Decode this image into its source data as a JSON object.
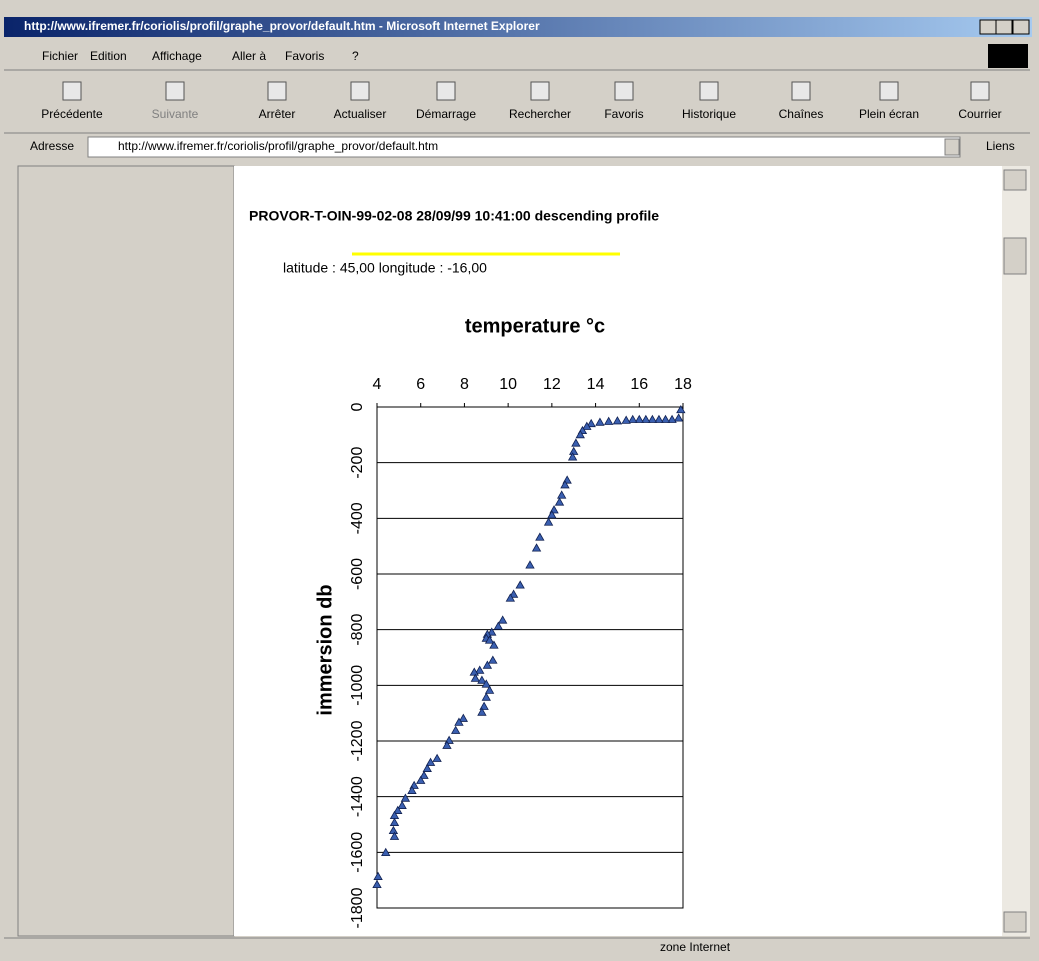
{
  "window": {
    "title": "http://www.ifremer.fr/coriolis/profil/graphe_provor/default.htm - Microsoft Internet Explorer"
  },
  "menu": [
    "Fichier",
    "Edition",
    "Affichage",
    "Aller à",
    "Favoris",
    "?"
  ],
  "toolbar": [
    "Précédente",
    "Suivante",
    "Arrêter",
    "Actualiser",
    "Démarrage",
    "Rechercher",
    "Favoris",
    "Historique",
    "Chaînes",
    "Plein écran",
    "Courrier"
  ],
  "address": {
    "label": "Adresse",
    "url": "http://www.ifremer.fr/coriolis/profil/graphe_provor/default.htm",
    "links": "Liens"
  },
  "page": {
    "heading": "PROVOR-T-OIN-99-02-08 28/09/99 10:41:00 descending profile",
    "position": "latitude : 45,00 longitude : -16,00"
  },
  "status": {
    "zone": "zone Internet"
  },
  "chart_data": {
    "type": "scatter",
    "title": "temperature °c",
    "y_label": "immersion db",
    "xlim": [
      4,
      18
    ],
    "xticks": [
      4,
      6,
      8,
      10,
      12,
      14,
      16,
      18
    ],
    "ylim": [
      -1800,
      0
    ],
    "yticks": [
      0,
      -200,
      -400,
      -600,
      -800,
      -1000,
      -1200,
      -1400,
      -1600,
      -1800
    ],
    "grid": true,
    "color": "#3a5fb0",
    "x": [
      17.9,
      17.8,
      17.5,
      17.2,
      16.9,
      16.6,
      16.3,
      16.0,
      15.7,
      15.4,
      15.0,
      14.6,
      14.2,
      13.8,
      13.6,
      13.4,
      13.3,
      13.1,
      13.0,
      12.95,
      12.7,
      12.6,
      12.45,
      12.35,
      12.1,
      12.0,
      11.85,
      11.45,
      11.3,
      11.0,
      10.55,
      10.25,
      10.1,
      9.75,
      9.55,
      9.25,
      9.05,
      9.0,
      9.15,
      9.35,
      9.3,
      9.05,
      8.7,
      8.45,
      8.5,
      8.8,
      9.0,
      9.15,
      9.0,
      8.9,
      8.8,
      7.95,
      7.75,
      7.6,
      7.3,
      7.2,
      6.75,
      6.45,
      6.3,
      6.15,
      6.0,
      5.7,
      5.6,
      5.3,
      5.15,
      4.95,
      4.8,
      4.8,
      4.75,
      4.8,
      4.4,
      4.05,
      4.0
    ],
    "values": [
      -10,
      -40,
      -45,
      -45,
      -45,
      -45,
      -45,
      -45,
      -45,
      -48,
      -50,
      -52,
      -55,
      -60,
      -70,
      -85,
      -100,
      -130,
      -160,
      -180,
      -263,
      -280,
      -317,
      -342,
      -370,
      -388,
      -414,
      -468,
      -507,
      -568,
      -640,
      -673,
      -687,
      -766,
      -788,
      -809,
      -817,
      -831,
      -838,
      -856,
      -910,
      -928,
      -946,
      -953,
      -975,
      -982,
      -996,
      -1018,
      -1043,
      -1076,
      -1097,
      -1119,
      -1133,
      -1162,
      -1198,
      -1216,
      -1263,
      -1277,
      -1299,
      -1324,
      -1342,
      -1360,
      -1378,
      -1406,
      -1432,
      -1450,
      -1468,
      -1493,
      -1522,
      -1543,
      -1601,
      -1687,
      -1716
    ]
  }
}
